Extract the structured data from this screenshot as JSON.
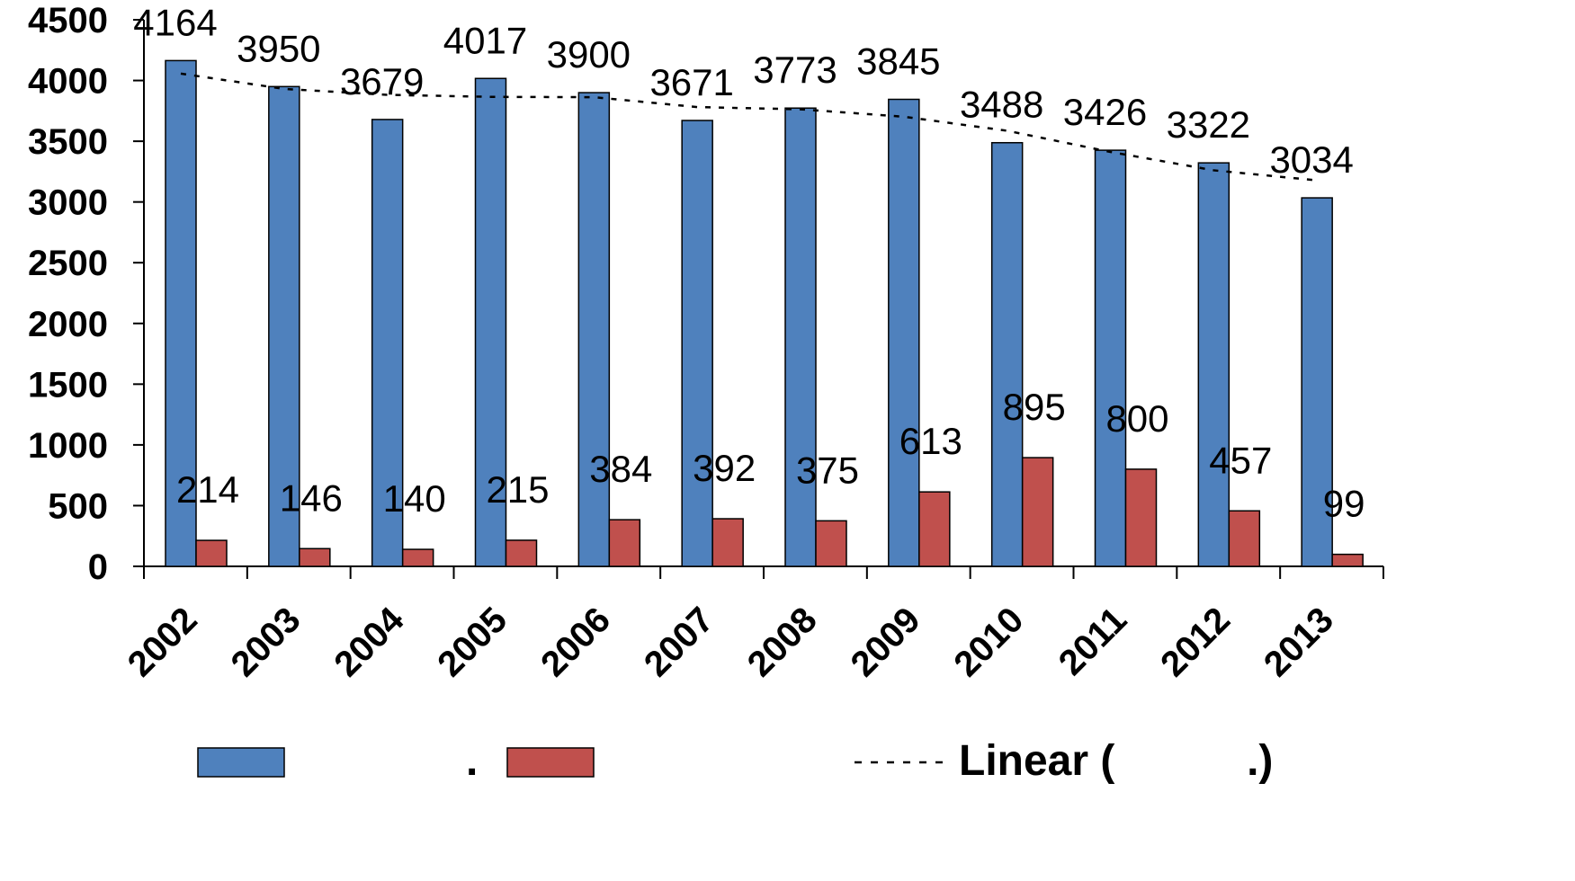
{
  "chart_data": {
    "type": "bar",
    "categories": [
      "2002",
      "2003",
      "2004",
      "2005",
      "2006",
      "2007",
      "2008",
      "2009",
      "2010",
      "2011",
      "2012",
      "2013"
    ],
    "series": [
      {
        "values": [
          4164,
          3950,
          3679,
          4017,
          3900,
          3671,
          3773,
          3845,
          3488,
          3426,
          3322,
          3034
        ],
        "color": "#4f81bd"
      },
      {
        "values": [
          214,
          146,
          140,
          215,
          384,
          392,
          375,
          613,
          895,
          800,
          457,
          99
        ],
        "color": "#c0504d"
      }
    ],
    "trendline": {
      "type": "linear",
      "of_series": 0
    },
    "ylim": [
      0,
      4500
    ],
    "yticks": [
      "0",
      "500",
      "1000",
      "1500",
      "2000",
      "2500",
      "3000",
      "3500",
      "4000",
      "4500"
    ],
    "grid": false,
    "legend": {
      "position": "bottom",
      "entries": [
        {
          "kind": "bar",
          "color": "#4f81bd",
          "text": ""
        },
        {
          "kind": "bar",
          "color": "#c0504d",
          "text": "."
        },
        {
          "kind": "dashed-line",
          "color": "#000000",
          "text": "Linear (           .)"
        }
      ]
    }
  }
}
